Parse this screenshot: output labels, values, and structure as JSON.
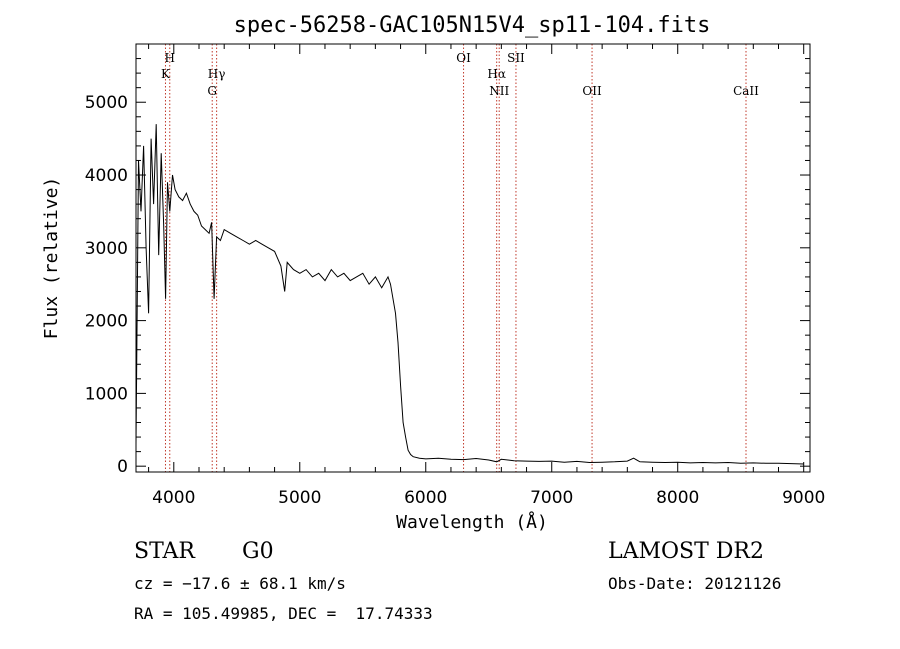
{
  "chart_data": {
    "type": "line",
    "title": "spec-56258-GAC105N15V4_sp11-104.fits",
    "xlabel": "Wavelength (Å)",
    "ylabel": "Flux (relative)",
    "xlim": [
      3700,
      9050
    ],
    "ylim": [
      -80,
      5800
    ],
    "xticks": [
      4000,
      5000,
      6000,
      7000,
      8000,
      9000
    ],
    "xtick_labels": [
      "4000",
      "5000",
      "6000",
      "7000",
      "8000",
      "9000"
    ],
    "yticks": [
      0,
      1000,
      2000,
      3000,
      4000,
      5000
    ],
    "ytick_labels": [
      "0",
      "1000",
      "2000",
      "3000",
      "4000",
      "5000"
    ],
    "grid": false,
    "series": [
      {
        "x": [
          3700,
          3720,
          3740,
          3760,
          3780,
          3800,
          3820,
          3840,
          3860,
          3880,
          3900,
          3920,
          3935,
          3950,
          3968,
          3990,
          4010,
          4040,
          4070,
          4100,
          4130,
          4160,
          4190,
          4220,
          4250,
          4280,
          4300,
          4320,
          4340,
          4370,
          4400,
          4450,
          4500,
          4550,
          4600,
          4650,
          4700,
          4750,
          4800,
          4850,
          4880,
          4900,
          4950,
          5000,
          5050,
          5100,
          5150,
          5200,
          5250,
          5300,
          5350,
          5400,
          5450,
          5500,
          5550,
          5600,
          5650,
          5700,
          5720,
          5740,
          5760,
          5780,
          5800,
          5820,
          5840,
          5860,
          5880,
          5900,
          5950,
          6000,
          6100,
          6200,
          6300,
          6400,
          6500,
          6563,
          6600,
          6700,
          6800,
          6900,
          7000,
          7100,
          7200,
          7300,
          7400,
          7500,
          7600,
          7650,
          7700,
          7800,
          7900,
          8000,
          8100,
          8200,
          8300,
          8400,
          8500,
          8600,
          8700,
          8800,
          8900,
          9000
        ],
        "y": [
          300,
          4200,
          3500,
          4400,
          3000,
          2100,
          4500,
          3600,
          4700,
          2900,
          4300,
          3300,
          2300,
          3900,
          3500,
          4000,
          3800,
          3700,
          3650,
          3750,
          3600,
          3500,
          3450,
          3300,
          3250,
          3200,
          3350,
          2300,
          3150,
          3100,
          3250,
          3200,
          3150,
          3100,
          3050,
          3100,
          3050,
          3000,
          2950,
          2750,
          2400,
          2800,
          2700,
          2650,
          2700,
          2600,
          2650,
          2550,
          2700,
          2600,
          2650,
          2550,
          2600,
          2650,
          2500,
          2600,
          2450,
          2600,
          2500,
          2300,
          2100,
          1700,
          1100,
          600,
          400,
          220,
          160,
          130,
          110,
          100,
          110,
          95,
          90,
          105,
          85,
          60,
          95,
          75,
          70,
          65,
          70,
          55,
          65,
          50,
          55,
          60,
          70,
          110,
          60,
          55,
          50,
          55,
          45,
          50,
          45,
          50,
          40,
          45,
          40,
          40,
          35,
          30
        ]
      }
    ],
    "lines": [
      {
        "label": "H",
        "wavelength": 3968
      },
      {
        "label": "K",
        "wavelength": 3934
      },
      {
        "label": "Hγ",
        "wavelength": 4340
      },
      {
        "label": "G",
        "wavelength": 4305
      },
      {
        "label": "OI",
        "wavelength": 6300
      },
      {
        "label": "Hα",
        "wavelength": 6563
      },
      {
        "label": "NII",
        "wavelength": 6583
      },
      {
        "label": "SII",
        "wavelength": 6716
      },
      {
        "label": "OII",
        "wavelength": 7320
      },
      {
        "label": "CaII",
        "wavelength": 8542
      }
    ]
  },
  "info": {
    "class_label": "STAR",
    "subclass": "G0",
    "redshift": "cz = −17.6 ± 68.1 km/s",
    "coords": "RA = 105.49985, DEC =  17.74333",
    "survey": "LAMOST DR2",
    "obs_date": "Obs-Date: 20121126"
  }
}
